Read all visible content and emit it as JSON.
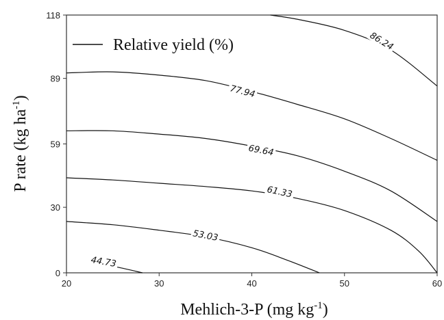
{
  "chart_data": {
    "type": "contour",
    "xlabel": "Mehlich-3-P (mg kg",
    "xlabel_sup": "-1",
    "xlabel_end": ")",
    "ylabel": "P rate (kg ha",
    "ylabel_sup": "-1",
    "ylabel_end": ")",
    "xlim": [
      20,
      60
    ],
    "ylim": [
      0,
      118
    ],
    "xticks": [
      "20",
      "30",
      "40",
      "50",
      "60"
    ],
    "xtick_values": [
      20,
      30,
      40,
      50,
      60
    ],
    "yticks": [
      "0",
      "30",
      "59",
      "89",
      "118"
    ],
    "ytick_values": [
      0,
      30,
      59,
      89,
      118
    ],
    "legend": {
      "label": "Relative yield (%)",
      "position": "top-left"
    },
    "series": [
      {
        "name": "44.73",
        "label_at": [
          24,
          5
        ],
        "points": [
          [
            23.0,
            4.4
          ],
          [
            25.5,
            2.6
          ],
          [
            28.2,
            0.0
          ]
        ]
      },
      {
        "name": "53.03",
        "label_at": [
          35,
          17
        ],
        "points": [
          [
            20,
            23.5
          ],
          [
            25,
            22.0
          ],
          [
            30,
            19.5
          ],
          [
            35,
            16.5
          ],
          [
            40,
            11.5
          ],
          [
            44,
            5.5
          ],
          [
            47.3,
            0.0
          ]
        ]
      },
      {
        "name": "61.33",
        "label_at": [
          43,
          37
        ],
        "points": [
          [
            20,
            43.5
          ],
          [
            25,
            42.5
          ],
          [
            30,
            41.0
          ],
          [
            35,
            39.5
          ],
          [
            40,
            37.5
          ],
          [
            45,
            34.0
          ],
          [
            50,
            28.5
          ],
          [
            55,
            19.5
          ],
          [
            58,
            10.0
          ],
          [
            60,
            0.0
          ]
        ]
      },
      {
        "name": "69.64",
        "label_at": [
          41,
          56
        ],
        "points": [
          [
            20,
            65.0
          ],
          [
            25,
            65.0
          ],
          [
            30,
            63.5
          ],
          [
            35,
            61.5
          ],
          [
            40,
            58.0
          ],
          [
            45,
            53.5
          ],
          [
            50,
            46.5
          ],
          [
            55,
            37.5
          ],
          [
            60,
            23.5
          ]
        ]
      },
      {
        "name": "77.94",
        "label_at": [
          39,
          83
        ],
        "points": [
          [
            20,
            91.5
          ],
          [
            25,
            92.0
          ],
          [
            30,
            90.5
          ],
          [
            35,
            88.0
          ],
          [
            40,
            83.0
          ],
          [
            45,
            77.0
          ],
          [
            50,
            70.5
          ],
          [
            55,
            61.5
          ],
          [
            60,
            51.5
          ]
        ]
      },
      {
        "name": "86.24",
        "label_at": [
          54,
          106
        ],
        "points": [
          [
            42.0,
            118.0
          ],
          [
            45,
            116.0
          ],
          [
            50,
            111.0
          ],
          [
            55,
            102.0
          ],
          [
            60,
            85.5
          ]
        ]
      }
    ]
  }
}
